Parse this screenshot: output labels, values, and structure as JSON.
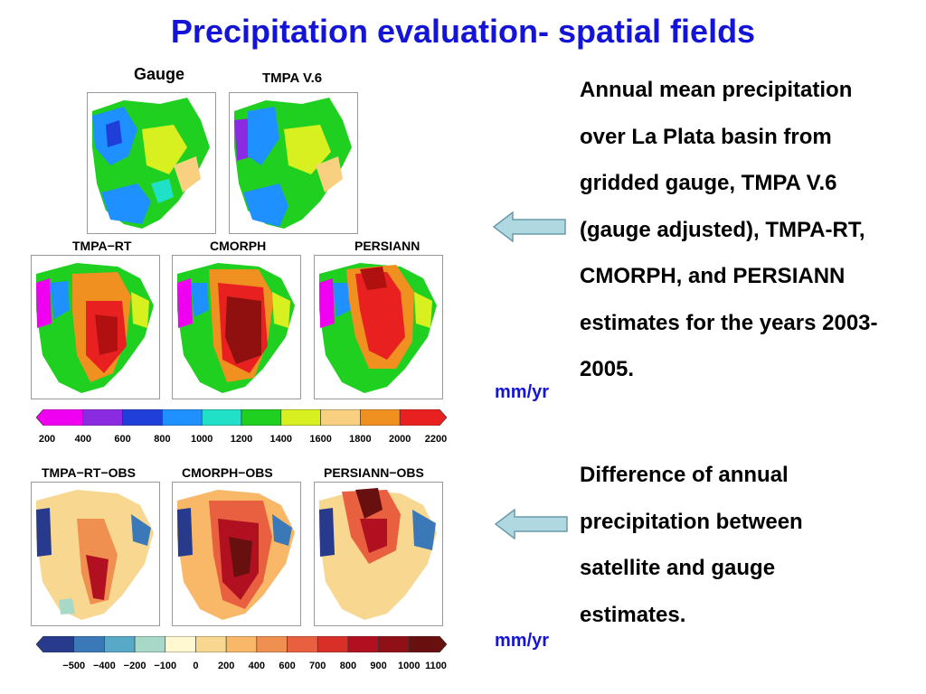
{
  "slide": {
    "title": "Precipitation evaluation- spatial fields"
  },
  "top_row_labels": [
    "Gauge",
    "TMPA V.6"
  ],
  "middle_row_labels": [
    "TMPA−RT",
    "CMORPH",
    "PERSIANN"
  ],
  "bottom_row_labels": [
    "TMPA−RT−OBS",
    "CMORPH−OBS",
    "PERSIANN−OBS"
  ],
  "colorbar_precip": {
    "ticks": [
      "200",
      "400",
      "600",
      "800",
      "1000",
      "1200",
      "1400",
      "1600",
      "1800",
      "2000",
      "2200"
    ],
    "colors": [
      "#f000f0",
      "#8a2be2",
      "#1f3fd8",
      "#1e90ff",
      "#20e0c8",
      "#20d020",
      "#d8f020",
      "#f8d080",
      "#f09020",
      "#e82020"
    ],
    "unit": "mm/yr"
  },
  "colorbar_diff": {
    "ticks": [
      "−500",
      "−400",
      "−200",
      "−100",
      "0",
      "200",
      "400",
      "600",
      "700",
      "800",
      "900",
      "1000",
      "1100"
    ],
    "colors": [
      "#283a8c",
      "#3a78b8",
      "#58a8c8",
      "#a8d8c8",
      "#fff8d0",
      "#f8d890",
      "#f8b868",
      "#f09050",
      "#e86040",
      "#d83028",
      "#b01020",
      "#901018",
      "#681010"
    ],
    "unit": "mm/yr"
  },
  "descriptions": {
    "annual": "Annual mean precipitation over La Plata basin from gridded gauge, TMPA V.6 (gauge adjusted), TMPA-RT, CMORPH, and PERSIANN estimates for the years 2003-2005.",
    "difference": "Difference of annual precipitation between satellite and gauge estimates."
  },
  "colors": {
    "title": "#1414d6",
    "unit": "#1414d6",
    "arrow_fill": "#b0d8e0",
    "arrow_stroke": "#6a9aaa"
  }
}
